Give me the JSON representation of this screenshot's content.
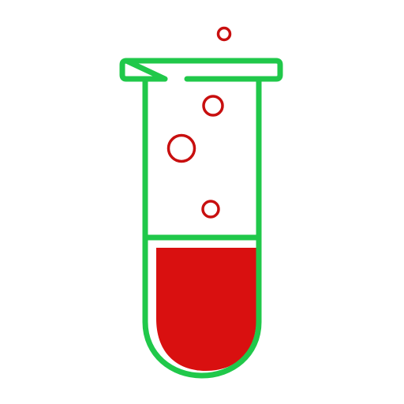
{
  "icon": {
    "name": "test-tube-icon",
    "elements": [
      "tube-rim",
      "tube-body",
      "liquid",
      "bubbles"
    ]
  },
  "colors": {
    "outline": "#20c84a",
    "liquid": "#d91010",
    "bubble": "#c80f0f",
    "background": "#ffffff"
  },
  "fill_level": 0.42
}
